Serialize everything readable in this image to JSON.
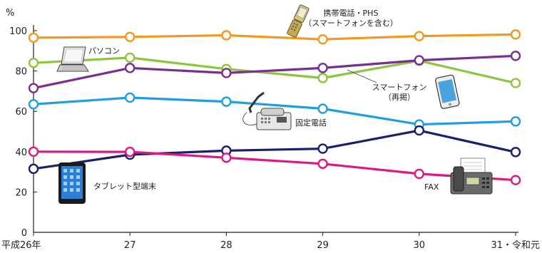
{
  "chart_data": {
    "type": "line",
    "y_unit": "%",
    "ylim": [
      0,
      100
    ],
    "y_ticks": [
      "0",
      "20",
      "40",
      "60",
      "80",
      "100"
    ],
    "categories": [
      "平成26年",
      "27",
      "28",
      "29",
      "30",
      "31・令和元"
    ],
    "grid": false,
    "series": [
      {
        "key": "mobile",
        "color": "#f29a1f",
        "values": [
          96.5,
          96.9,
          97.7,
          95.7,
          97.3,
          98.1
        ],
        "label_lines": [
          "携帯電話・PHS",
          "（スマートフォンを含む）"
        ],
        "icon": "flip-phone-icon"
      },
      {
        "key": "pc",
        "color": "#8cc63f",
        "values": [
          84.0,
          86.6,
          81.0,
          76.5,
          85.1,
          74.0
        ],
        "label_lines": [
          "パソコン"
        ],
        "icon": "laptop-icon"
      },
      {
        "key": "smartphone",
        "color": "#7a2e8e",
        "values": [
          71.5,
          81.5,
          79.0,
          81.5,
          85.3,
          87.5
        ],
        "label_lines": [
          "スマートフォン",
          "（再掲）"
        ],
        "icon": "smartphone-icon"
      },
      {
        "key": "fixed",
        "color": "#1f9ee0",
        "values": [
          63.5,
          66.8,
          64.8,
          61.3,
          53.5,
          55.0
        ],
        "label_lines": [
          "固定電話"
        ],
        "icon": "desk-phone-icon"
      },
      {
        "key": "tablet",
        "color": "#1b1f6e",
        "values": [
          31.5,
          38.5,
          40.5,
          41.5,
          50.5,
          39.8
        ],
        "label_lines": [
          "タブレット型端末"
        ],
        "icon": "tablet-icon"
      },
      {
        "key": "fax",
        "color": "#e0177f",
        "values": [
          40.0,
          39.9,
          37.0,
          34.0,
          29.0,
          25.9
        ],
        "label_lines": [
          "FAX"
        ],
        "icon": "fax-icon"
      }
    ]
  }
}
